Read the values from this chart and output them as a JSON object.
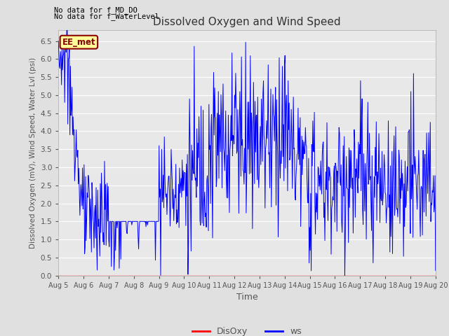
{
  "title": "Dissolved Oxygen and Wind Speed",
  "xlabel": "Time",
  "ylabel": "Dissolved Oxygen (mV), Wind Speed, Water Lvl (psi)",
  "ylim": [
    0.0,
    6.8
  ],
  "yticks": [
    0.0,
    0.5,
    1.0,
    1.5,
    2.0,
    2.5,
    3.0,
    3.5,
    4.0,
    4.5,
    5.0,
    5.5,
    6.0,
    6.5
  ],
  "fig_bg_color": "#e0e0e0",
  "plot_bg_color": "#e8e8e8",
  "grid_color": "white",
  "text_color": "#555555",
  "ws_color": "blue",
  "disoxy_color": "red",
  "annotation_text1": "No data for f_MD_DO",
  "annotation_text2": "No data for f_WaterLevel",
  "legend_label1": "EE_met",
  "legend_label2": "DisOxy",
  "legend_label3": "ws",
  "n_points": 720,
  "date_labels": [
    "Aug 5",
    "Aug 6",
    "Aug 7",
    "Aug 8",
    "Aug 9",
    "Aug 10",
    "Aug 11",
    "Aug 12",
    "Aug 13",
    "Aug 14",
    "Aug 15",
    "Aug 16",
    "Aug 17",
    "Aug 18",
    "Aug 19",
    "Aug 20"
  ],
  "figsize": [
    6.4,
    4.8
  ],
  "dpi": 100
}
